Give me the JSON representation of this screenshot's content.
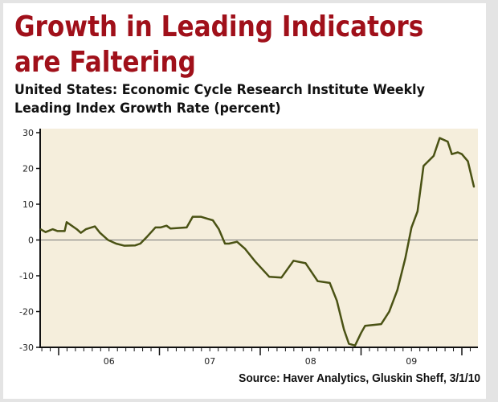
{
  "title_line1": "Growth in Leading Indicators",
  "title_line2": "are Faltering",
  "subtitle_line1": "United States: Economic Cycle Research Institute Weekly",
  "subtitle_line2": "Leading Index Growth Rate (percent)",
  "source": "Source: Haver Analytics, Gluskin Sheff, 3/1/10",
  "colors": {
    "title": "#a0101a",
    "line": "#4a5214",
    "plot_bg": "#f5eedc",
    "frame": "#e4e4e4"
  },
  "chart_data": {
    "type": "line",
    "title": "Growth in Leading Indicators are Faltering",
    "xlabel": "",
    "ylabel": "percent",
    "ylim": [
      -30,
      30
    ],
    "xlim": [
      2005.82,
      2010.16
    ],
    "yticks": [
      30,
      20,
      10,
      0,
      -10,
      -20,
      -30
    ],
    "ytick_labels": [
      "30",
      "20",
      "10",
      "0",
      "-10",
      "-20",
      "-30"
    ],
    "xtick_labels": [
      {
        "label": "06",
        "x": 2006.5
      },
      {
        "label": "07",
        "x": 2007.5
      },
      {
        "label": "08",
        "x": 2008.5
      },
      {
        "label": "09",
        "x": 2009.5
      }
    ],
    "reference_line": 0,
    "series": [
      {
        "name": "ECRI Weekly Leading Index Growth Rate",
        "x": [
          2005.82,
          2005.87,
          2005.94,
          2005.99,
          2006.06,
          2006.08,
          2006.18,
          2006.22,
          2006.27,
          2006.36,
          2006.41,
          2006.49,
          2006.57,
          2006.65,
          2006.76,
          2006.81,
          2006.88,
          2006.96,
          2007.01,
          2007.07,
          2007.11,
          2007.27,
          2007.33,
          2007.41,
          2007.47,
          2007.53,
          2007.59,
          2007.65,
          2007.69,
          2007.77,
          2007.85,
          2007.95,
          2008.09,
          2008.21,
          2008.33,
          2008.45,
          2008.57,
          2008.69,
          2008.76,
          2008.83,
          2008.88,
          2008.94,
          2009.0,
          2009.04,
          2009.2,
          2009.28,
          2009.36,
          2009.44,
          2009.5,
          2009.56,
          2009.62,
          2009.72,
          2009.78,
          2009.86,
          2009.9,
          2009.96,
          2010.0,
          2010.06,
          2010.12
        ],
        "y": [
          3,
          2.2,
          3,
          2.5,
          2.5,
          5,
          3,
          2,
          3,
          3.8,
          2,
          0,
          -1,
          -1.6,
          -1.5,
          -1,
          1,
          3.5,
          3.5,
          4,
          3.2,
          3.5,
          6.5,
          6.5,
          6,
          5.5,
          3,
          -1,
          -1,
          -0.5,
          -2.5,
          -6,
          -10.3,
          -10.5,
          -5.8,
          -6.5,
          -11.5,
          -12,
          -17,
          -25,
          -29,
          -29.5,
          -26,
          -24,
          -23.5,
          -20,
          -14,
          -5,
          3.5,
          8,
          20.7,
          23.5,
          28.5,
          27.5,
          24,
          24.5,
          24,
          22,
          14.8
        ]
      }
    ]
  }
}
